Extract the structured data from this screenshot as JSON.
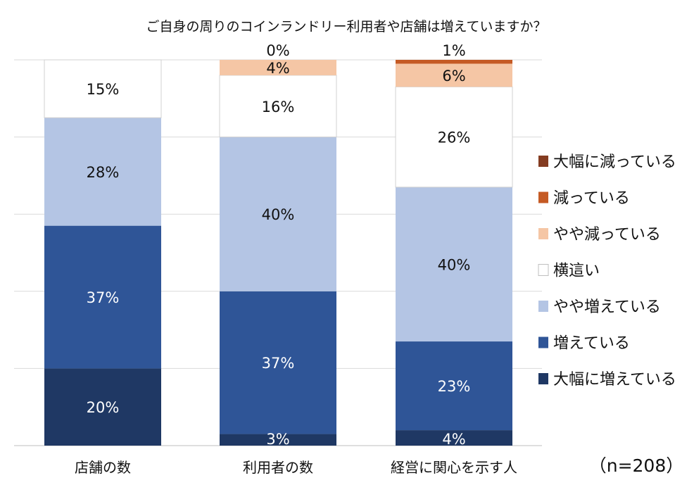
{
  "chart_data": {
    "type": "bar",
    "stacked": true,
    "normalized_percent": true,
    "title": "ご自身の周りのコインランドリー利用者や店舗は増えていますか？",
    "categories": [
      "店舗の数",
      "利用者の数",
      "経営に関心を示す人"
    ],
    "series": [
      {
        "name": "大幅に増えている",
        "color": "#1f3864",
        "values": [
          20,
          3,
          4
        ]
      },
      {
        "name": "増えている",
        "color": "#2f5597",
        "values": [
          37,
          37,
          23
        ]
      },
      {
        "name": "やや増えている",
        "color": "#b4c5e4",
        "values": [
          28,
          40,
          40
        ]
      },
      {
        "name": "横這い",
        "color": "#ffffff",
        "values": [
          15,
          16,
          26
        ]
      },
      {
        "name": "やや減っている",
        "color": "#f5c6a5",
        "values": [
          0,
          4,
          6
        ]
      },
      {
        "name": "減っている",
        "color": "#c55a24",
        "values": [
          0,
          0,
          1
        ]
      },
      {
        "name": "大幅に減っている",
        "color": "#843c21",
        "values": [
          0,
          0,
          0
        ]
      }
    ],
    "data_labels": [
      [
        "20%",
        "37%",
        "28%",
        "15%",
        null,
        null,
        null
      ],
      [
        "3%",
        "37%",
        "40%",
        "16%",
        "4%",
        "0%",
        null
      ],
      [
        "4%",
        "23%",
        "40%",
        "26%",
        "6%",
        "1%",
        null
      ]
    ],
    "ylim": [
      0,
      100
    ],
    "grid": true,
    "legend_position": "right"
  },
  "note": "（n=208）"
}
